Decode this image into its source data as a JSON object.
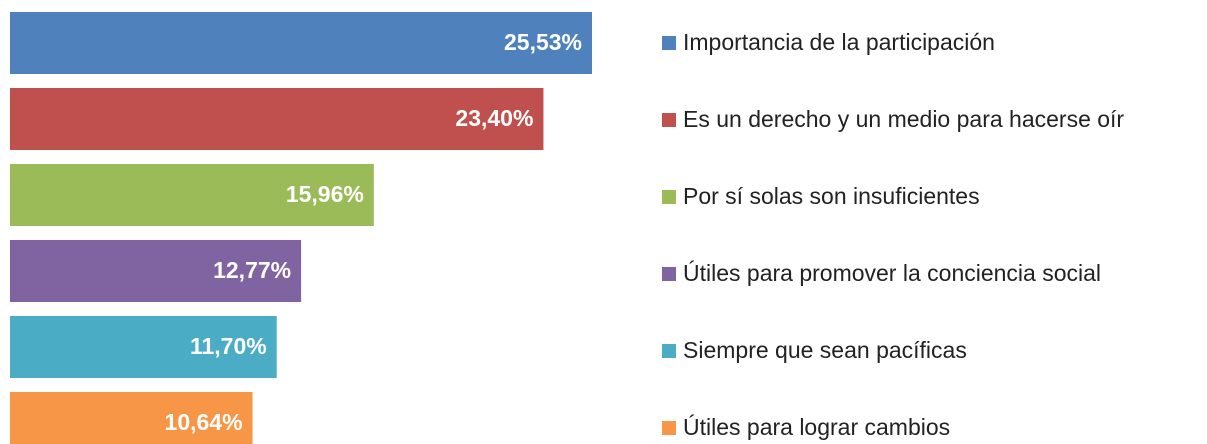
{
  "chart_data": {
    "type": "bar",
    "orientation": "horizontal",
    "categories": [
      "Importancia de la participación",
      "Es un derecho y un medio para hacerse oír",
      "Por sí solas son insuficientes",
      "Útiles para promover la conciencia social",
      "Siempre que sean pacíficas",
      "Útiles para lograr cambios"
    ],
    "values": [
      25.53,
      23.4,
      15.96,
      12.77,
      11.7,
      10.64
    ],
    "value_labels": [
      "25,53%",
      "23,40%",
      "15,96%",
      "12,77%",
      "11,70%",
      "10,64%"
    ],
    "colors": [
      "#4f81bd",
      "#c0504d",
      "#9bbb59",
      "#8064a2",
      "#4bacc6",
      "#f79646"
    ]
  }
}
